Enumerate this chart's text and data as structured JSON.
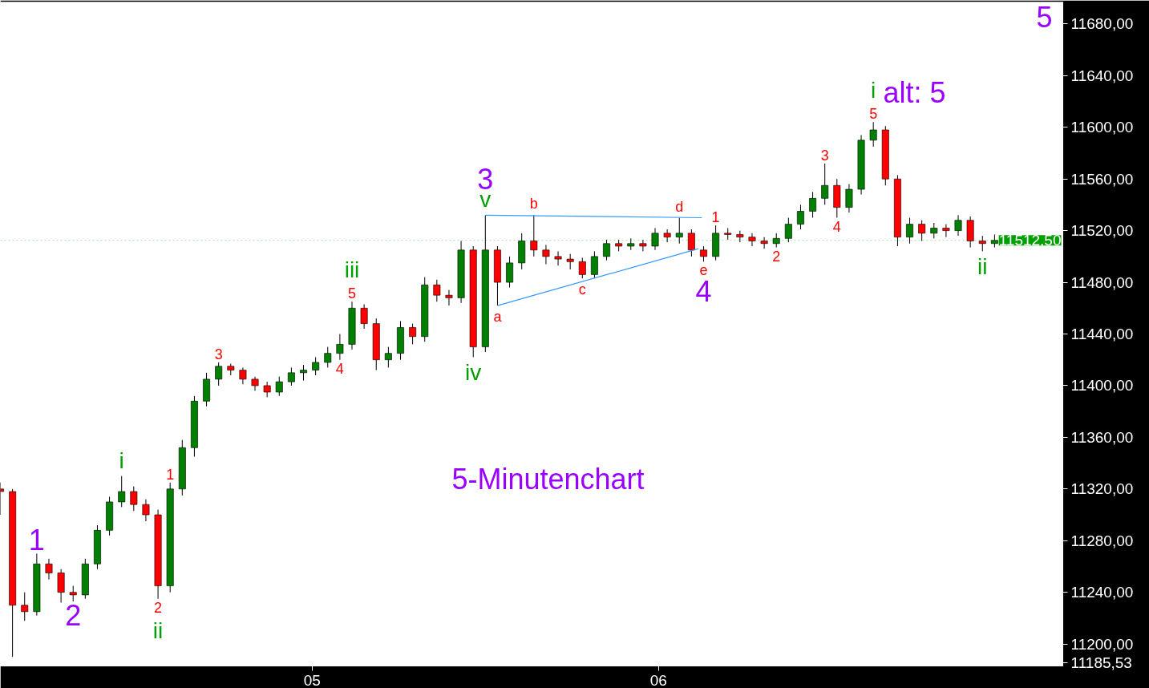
{
  "chart_data": {
    "type": "candlestick",
    "xlim": [
      4.1,
      7.167
    ],
    "ylim": [
      11183,
      11697
    ],
    "xticks": [
      {
        "value": 5,
        "label": "05"
      },
      {
        "value": 6,
        "label": "06"
      }
    ],
    "yticks": [
      {
        "value": 11185.53,
        "label": "11185,53"
      },
      {
        "value": 11200,
        "label": "11200,00"
      },
      {
        "value": 11240,
        "label": "11240,00"
      },
      {
        "value": 11280,
        "label": "11280,00"
      },
      {
        "value": 11320,
        "label": "11320,00"
      },
      {
        "value": 11360,
        "label": "11360,00"
      },
      {
        "value": 11400,
        "label": "11400,00"
      },
      {
        "value": 11440,
        "label": "11440,00"
      },
      {
        "value": 11480,
        "label": "11480,00"
      },
      {
        "value": 11520,
        "label": "11520,00"
      },
      {
        "value": 11560,
        "label": "11560,00"
      },
      {
        "value": 11600,
        "label": "11600,00"
      },
      {
        "value": 11640,
        "label": "11640,00"
      },
      {
        "value": 11680,
        "label": "11680,00"
      }
    ],
    "grid": false,
    "series": [
      {
        "x": [
          4.1,
          4.135,
          4.17,
          4.205,
          4.24,
          4.275,
          4.31,
          4.345,
          4.38,
          4.415,
          4.45,
          4.485,
          4.52,
          4.555,
          4.59,
          4.625,
          4.66,
          4.695,
          4.73,
          4.765,
          4.8,
          4.835,
          4.87,
          4.905,
          4.94,
          4.975,
          5.01,
          5.045,
          5.08,
          5.115,
          5.15,
          5.185,
          5.22,
          5.255,
          5.29,
          5.325,
          5.36,
          5.395,
          5.43,
          5.465,
          5.5,
          5.535,
          5.57,
          5.605,
          5.64,
          5.675,
          5.71,
          5.745,
          5.78,
          5.815,
          5.85,
          5.885,
          5.92,
          5.955,
          5.99,
          6.025,
          6.06,
          6.095,
          6.13,
          6.165,
          6.2,
          6.235,
          6.27,
          6.305,
          6.34,
          6.375,
          6.41,
          6.445,
          6.48,
          6.515,
          6.55,
          6.585,
          6.62,
          6.655,
          6.69,
          6.725,
          6.76,
          6.795,
          6.83,
          6.865,
          6.9,
          6.935,
          6.97
        ],
        "ohlc": [
          [
            11320,
            11325,
            11300,
            11318
          ],
          [
            11318,
            11320,
            11190,
            11230
          ],
          [
            11230,
            11240,
            11218,
            11225
          ],
          [
            11225,
            11270,
            11222,
            11262
          ],
          [
            11262,
            11266,
            11250,
            11255
          ],
          [
            11255,
            11258,
            11232,
            11240
          ],
          [
            11240,
            11245,
            11233,
            11238
          ],
          [
            11238,
            11266,
            11235,
            11262
          ],
          [
            11262,
            11292,
            11258,
            11288
          ],
          [
            11288,
            11314,
            11284,
            11310
          ],
          [
            11310,
            11330,
            11306,
            11318
          ],
          [
            11318,
            11322,
            11303,
            11308
          ],
          [
            11308,
            11312,
            11295,
            11300
          ],
          [
            11300,
            11304,
            11235,
            11245
          ],
          [
            11245,
            11325,
            11240,
            11320
          ],
          [
            11320,
            11358,
            11315,
            11352
          ],
          [
            11352,
            11392,
            11345,
            11388
          ],
          [
            11388,
            11410,
            11384,
            11405
          ],
          [
            11405,
            11418,
            11400,
            11415
          ],
          [
            11415,
            11417,
            11408,
            11412
          ],
          [
            11412,
            11414,
            11401,
            11405
          ],
          [
            11405,
            11407,
            11396,
            11400
          ],
          [
            11400,
            11403,
            11391,
            11395
          ],
          [
            11395,
            11407,
            11392,
            11403
          ],
          [
            11403,
            11414,
            11400,
            11410
          ],
          [
            11410,
            11416,
            11404,
            11412
          ],
          [
            11412,
            11422,
            11408,
            11418
          ],
          [
            11418,
            11430,
            11414,
            11425
          ],
          [
            11425,
            11440,
            11420,
            11432
          ],
          [
            11432,
            11465,
            11428,
            11460
          ],
          [
            11460,
            11463,
            11444,
            11448
          ],
          [
            11448,
            11452,
            11412,
            11420
          ],
          [
            11420,
            11430,
            11414,
            11425
          ],
          [
            11425,
            11450,
            11420,
            11445
          ],
          [
            11445,
            11448,
            11432,
            11438
          ],
          [
            11438,
            11484,
            11434,
            11478
          ],
          [
            11478,
            11482,
            11465,
            11470
          ],
          [
            11470,
            11474,
            11462,
            11468
          ],
          [
            11468,
            11512,
            11464,
            11505
          ],
          [
            11505,
            11508,
            11422,
            11430
          ],
          [
            11430,
            11532,
            11426,
            11505
          ],
          [
            11505,
            11508,
            11462,
            11480
          ],
          [
            11480,
            11500,
            11476,
            11495
          ],
          [
            11495,
            11518,
            11490,
            11512
          ],
          [
            11512,
            11532,
            11500,
            11505
          ],
          [
            11505,
            11509,
            11494,
            11500
          ],
          [
            11500,
            11504,
            11493,
            11498
          ],
          [
            11498,
            11502,
            11490,
            11496
          ],
          [
            11496,
            11499,
            11483,
            11486
          ],
          [
            11486,
            11504,
            11483,
            11500
          ],
          [
            11500,
            11513,
            11497,
            11510
          ],
          [
            11510,
            11513,
            11504,
            11508
          ],
          [
            11508,
            11514,
            11505,
            11510
          ],
          [
            11510,
            11513,
            11504,
            11508
          ],
          [
            11508,
            11522,
            11505,
            11518
          ],
          [
            11518,
            11521,
            11511,
            11515
          ],
          [
            11515,
            11530,
            11510,
            11518
          ],
          [
            11518,
            11521,
            11500,
            11505
          ],
          [
            11505,
            11508,
            11496,
            11500
          ],
          [
            11500,
            11524,
            11497,
            11518
          ],
          [
            11518,
            11522,
            11513,
            11517
          ],
          [
            11517,
            11520,
            11511,
            11515
          ],
          [
            11515,
            11518,
            11508,
            11512
          ],
          [
            11512,
            11515,
            11506,
            11510
          ],
          [
            11510,
            11518,
            11507,
            11514
          ],
          [
            11514,
            11530,
            11511,
            11525
          ],
          [
            11525,
            11540,
            11521,
            11535
          ],
          [
            11535,
            11550,
            11530,
            11545
          ],
          [
            11545,
            11572,
            11540,
            11555
          ],
          [
            11555,
            11560,
            11530,
            11538
          ],
          [
            11538,
            11556,
            11534,
            11552
          ],
          [
            11552,
            11594,
            11548,
            11590
          ],
          [
            11590,
            11604,
            11585,
            11598
          ],
          [
            11598,
            11601,
            11555,
            11560
          ],
          [
            11560,
            11563,
            11508,
            11515
          ],
          [
            11515,
            11530,
            11510,
            11525
          ],
          [
            11525,
            11528,
            11512,
            11518
          ],
          [
            11518,
            11526,
            11514,
            11522
          ],
          [
            11522,
            11525,
            11515,
            11520
          ],
          [
            11520,
            11532,
            11516,
            11528
          ],
          [
            11528,
            11531,
            11507,
            11512
          ],
          [
            11512,
            11516,
            11504,
            11510
          ],
          [
            11510,
            11517,
            11507,
            11512.5
          ]
        ],
        "colors": [
          "#ff0000",
          "#ff0000",
          "#ff0000",
          "#008000",
          "#ff0000",
          "#ff0000",
          "#ff0000",
          "#008000",
          "#008000",
          "#008000",
          "#008000",
          "#ff0000",
          "#ff0000",
          "#ff0000",
          "#008000",
          "#008000",
          "#008000",
          "#008000",
          "#008000",
          "#ff0000",
          "#ff0000",
          "#ff0000",
          "#ff0000",
          "#008000",
          "#008000",
          "#008000",
          "#008000",
          "#008000",
          "#008000",
          "#008000",
          "#ff0000",
          "#ff0000",
          "#008000",
          "#008000",
          "#ff0000",
          "#008000",
          "#ff0000",
          "#ff0000",
          "#008000",
          "#ff0000",
          "#008000",
          "#ff0000",
          "#008000",
          "#008000",
          "#ff0000",
          "#ff0000",
          "#ff0000",
          "#ff0000",
          "#ff0000",
          "#008000",
          "#008000",
          "#ff0000",
          "#008000",
          "#ff0000",
          "#008000",
          "#ff0000",
          "#008000",
          "#ff0000",
          "#ff0000",
          "#008000",
          "#ff0000",
          "#ff0000",
          "#ff0000",
          "#ff0000",
          "#008000",
          "#008000",
          "#008000",
          "#008000",
          "#008000",
          "#ff0000",
          "#008000",
          "#008000",
          "#008000",
          "#ff0000",
          "#ff0000",
          "#008000",
          "#ff0000",
          "#008000",
          "#ff0000",
          "#008000",
          "#ff0000",
          "#ff0000",
          "#008000"
        ]
      },
      {
        "type": "line",
        "color": "#3399ff",
        "x": [
          5.5,
          6.125
        ],
        "values": [
          11532,
          11530
        ]
      },
      {
        "type": "line",
        "color": "#3399ff",
        "x": [
          5.535,
          6.115
        ],
        "values": [
          11462,
          11506
        ]
      }
    ],
    "ref_lines": [
      {
        "axis": "y",
        "value": 11512.5,
        "label": "11512,50",
        "color": "#00a000"
      }
    ],
    "annotations": [
      {
        "text": "1",
        "x": 4.205,
        "y": 11270
      },
      {
        "text": "2",
        "x": 4.31,
        "y": 11233
      },
      {
        "text": "3",
        "x": 5.5,
        "y": 11532
      },
      {
        "text": "4",
        "x": 6.13,
        "y": 11496
      },
      {
        "text": "i",
        "x": 4.45,
        "y": 11330
      },
      {
        "text": "ii",
        "x": 4.555,
        "y": 11235
      },
      {
        "text": "iii",
        "x": 5.115,
        "y": 11465
      },
      {
        "text": "iv",
        "x": 5.465,
        "y": 11422
      },
      {
        "text": "v",
        "x": 5.5,
        "y": 11532
      },
      {
        "text": "i",
        "x": 6.62,
        "y": 11604
      },
      {
        "text": "ii",
        "x": 6.935,
        "y": 11504
      },
      {
        "text": "1",
        "x": 4.59,
        "y": 11325
      },
      {
        "text": "2",
        "x": 4.555,
        "y": 11235
      },
      {
        "text": "3",
        "x": 4.73,
        "y": 11418
      },
      {
        "text": "4",
        "x": 5.08,
        "y": 11420
      },
      {
        "text": "5",
        "x": 5.115,
        "y": 11465
      },
      {
        "text": "a",
        "x": 5.535,
        "y": 11462
      },
      {
        "text": "b",
        "x": 5.64,
        "y": 11532
      },
      {
        "text": "c",
        "x": 5.78,
        "y": 11483
      },
      {
        "text": "d",
        "x": 6.06,
        "y": 11530
      },
      {
        "text": "e",
        "x": 6.13,
        "y": 11496
      },
      {
        "text": "1",
        "x": 6.165,
        "y": 11524
      },
      {
        "text": "2",
        "x": 6.34,
        "y": 11507
      },
      {
        "text": "3",
        "x": 6.48,
        "y": 11572
      },
      {
        "text": "4",
        "x": 6.515,
        "y": 11530
      },
      {
        "text": "5",
        "x": 6.62,
        "y": 11604
      },
      "5",
      "alt: 5",
      "5-Minutenchart"
    ]
  }
}
